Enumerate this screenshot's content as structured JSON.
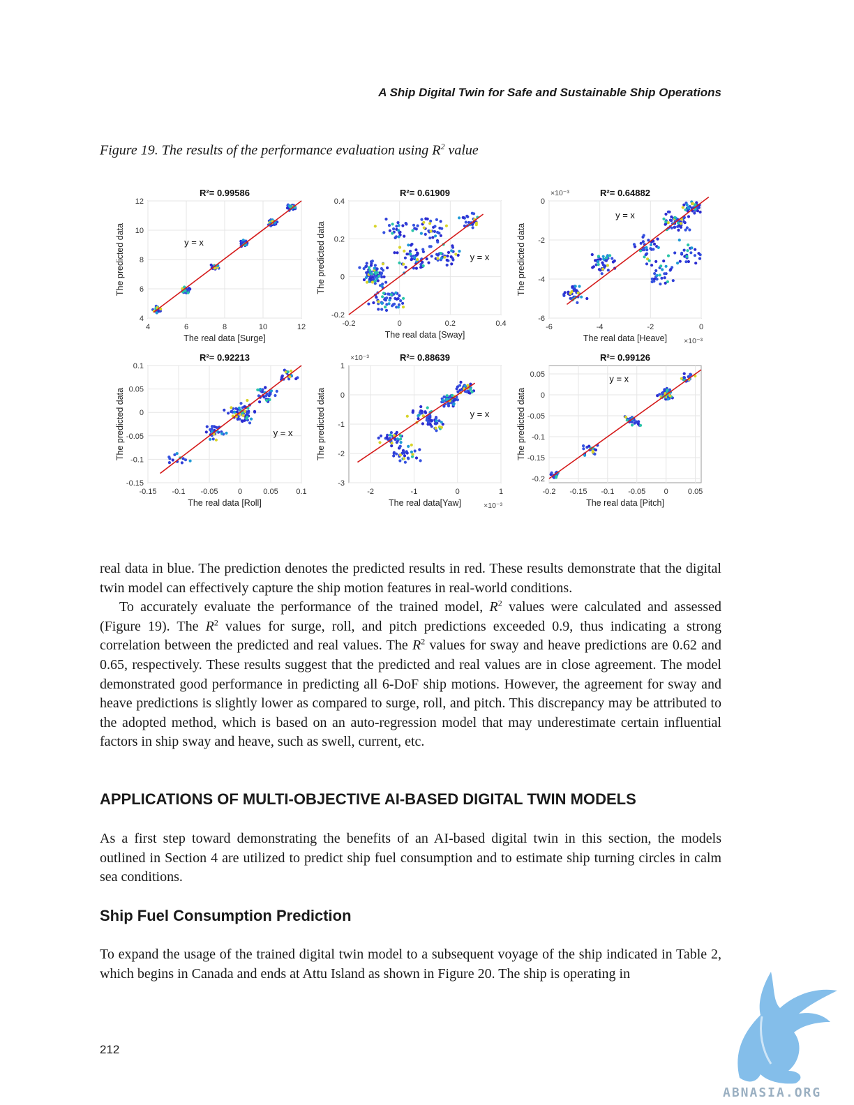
{
  "header": {
    "running_title": "A Ship Digital Twin for Safe and Sustainable Ship Operations"
  },
  "figure": {
    "caption_prefix": "Figure 19. The results of the performance evaluation using R",
    "caption_sup": "2",
    "caption_suffix": " value"
  },
  "chart_data": [
    {
      "type": "scatter",
      "title": "R²= 0.99586",
      "xlabel": "The real data [Surge]",
      "ylabel": "The predicted data",
      "xlim": [
        4,
        12
      ],
      "ylim": [
        4,
        12
      ],
      "xticks": [
        "4",
        "6",
        "8",
        "10",
        "12"
      ],
      "yticks": [
        "4",
        "6",
        "8",
        "10",
        "12"
      ],
      "annotation": "y = x",
      "x_exponent": "",
      "y_exponent": "",
      "fit_line": [
        [
          4.3,
          4.4
        ],
        [
          12,
          12
        ]
      ],
      "clusters": [
        [
          4.5,
          4.6,
          0.15,
          25
        ],
        [
          6,
          5.9,
          0.15,
          25
        ],
        [
          7.5,
          7.5,
          0.12,
          25
        ],
        [
          9,
          9.1,
          0.15,
          30
        ],
        [
          10.5,
          10.5,
          0.15,
          35
        ],
        [
          11.5,
          11.6,
          0.15,
          35
        ]
      ]
    },
    {
      "type": "scatter",
      "title": "R²= 0.61909",
      "xlabel": "The real data [Sway]",
      "ylabel": "The predicted data",
      "xlim": [
        -0.2,
        0.4
      ],
      "ylim": [
        -0.2,
        0.4
      ],
      "xticks": [
        "-0.2",
        "0",
        "0.2",
        "0.4"
      ],
      "yticks": [
        "-0.2",
        "0",
        "0.2",
        "0.4"
      ],
      "annotation": "y = x",
      "x_exponent": "",
      "y_exponent": "",
      "fit_line": [
        [
          -0.2,
          -0.2
        ],
        [
          0.33,
          0.33
        ]
      ],
      "clusters": [
        [
          -0.1,
          0.02,
          0.04,
          80
        ],
        [
          -0.05,
          -0.12,
          0.05,
          50
        ],
        [
          0.05,
          0.1,
          0.05,
          45
        ],
        [
          0.12,
          0.25,
          0.05,
          35
        ],
        [
          0.18,
          0.12,
          0.04,
          35
        ],
        [
          0.28,
          0.3,
          0.03,
          25
        ],
        [
          -0.02,
          0.25,
          0.04,
          25
        ]
      ]
    },
    {
      "type": "scatter",
      "title": "R²= 0.64882",
      "xlabel": "The real data [Heave]",
      "ylabel": "The predicted data",
      "xlim": [
        -6,
        0
      ],
      "ylim": [
        -6,
        0
      ],
      "xticks": [
        "-6",
        "-4",
        "-2",
        "0"
      ],
      "yticks": [
        "-6",
        "-4",
        "-2",
        "0"
      ],
      "annotation": "y = x",
      "x_exponent": "×10⁻³",
      "y_exponent": "×10⁻³",
      "fit_line": [
        [
          -5.3,
          -5.3
        ],
        [
          0.3,
          0.2
        ]
      ],
      "clusters": [
        [
          -5,
          -4.8,
          0.3,
          35
        ],
        [
          -3.8,
          -3.2,
          0.35,
          40
        ],
        [
          -2,
          -2.5,
          0.5,
          35
        ],
        [
          -1,
          -1,
          0.4,
          55
        ],
        [
          -0.3,
          -0.3,
          0.25,
          45
        ],
        [
          -1.5,
          -3.8,
          0.4,
          25
        ],
        [
          -0.5,
          -2.7,
          0.4,
          25
        ]
      ]
    },
    {
      "type": "scatter",
      "title": "R²= 0.92213",
      "xlabel": "The real data [Roll]",
      "ylabel": "The predicted data",
      "xlim": [
        -0.15,
        0.1
      ],
      "ylim": [
        -0.15,
        0.1
      ],
      "xticks": [
        "-0.15",
        "-0.1",
        "-0.05",
        "0",
        "0.05",
        "0.1"
      ],
      "yticks": [
        "-0.15",
        "-0.1",
        "-0.05",
        "0",
        "0.05",
        "0.1"
      ],
      "annotation": "y = x",
      "x_exponent": "",
      "y_exponent": "",
      "fit_line": [
        [
          -0.13,
          -0.13
        ],
        [
          0.1,
          0.1
        ]
      ],
      "clusters": [
        [
          0,
          0,
          0.015,
          70
        ],
        [
          -0.04,
          -0.04,
          0.012,
          30
        ],
        [
          0.04,
          0.04,
          0.012,
          30
        ],
        [
          0.08,
          0.08,
          0.01,
          20
        ],
        [
          -0.1,
          -0.1,
          0.012,
          12
        ]
      ]
    },
    {
      "type": "scatter",
      "title": "R²= 0.88639",
      "xlabel": "The real data[Yaw]",
      "ylabel": "The predicted data",
      "xlim": [
        -2.5,
        1
      ],
      "ylim": [
        -3,
        1
      ],
      "xticks": [
        "-2",
        "-1",
        "0",
        "1"
      ],
      "yticks": [
        "-3",
        "-2",
        "-1",
        "0",
        "1"
      ],
      "annotation": "y = x",
      "x_exponent": "×10⁻³",
      "y_exponent": "×10⁻³",
      "fit_line": [
        [
          -2.3,
          -2.3
        ],
        [
          0.4,
          0.4
        ]
      ],
      "clusters": [
        [
          -0.2,
          -0.2,
          0.15,
          45
        ],
        [
          0.2,
          0.2,
          0.15,
          35
        ],
        [
          -0.8,
          -0.7,
          0.2,
          35
        ],
        [
          -1.5,
          -1.5,
          0.2,
          35
        ],
        [
          -1.2,
          -2,
          0.25,
          35
        ],
        [
          -0.5,
          -1,
          0.15,
          25
        ]
      ]
    },
    {
      "type": "scatter",
      "title": "R²= 0.99126",
      "xlabel": "The real data [Pitch]",
      "ylabel": "The predicted data",
      "xlim": [
        -0.2,
        0.06
      ],
      "ylim": [
        -0.21,
        0.07
      ],
      "xticks": [
        "-0.2",
        "-0.15",
        "-0.1",
        "-0.05",
        "0",
        "0.05"
      ],
      "yticks": [
        "-0.2",
        "-0.15",
        "-0.1",
        "-0.05",
        "0",
        "0.05"
      ],
      "annotation": "y = x",
      "x_exponent": "",
      "y_exponent": "",
      "fit_line": [
        [
          -0.2,
          -0.2
        ],
        [
          0.06,
          0.06
        ]
      ],
      "clusters": [
        [
          0,
          0,
          0.01,
          60
        ],
        [
          -0.06,
          -0.06,
          0.01,
          25
        ],
        [
          -0.13,
          -0.13,
          0.012,
          20
        ],
        [
          -0.19,
          -0.19,
          0.006,
          15
        ],
        [
          0.04,
          0.04,
          0.008,
          20
        ]
      ]
    }
  ],
  "body": {
    "para1": "real data in blue. The prediction denotes the predicted results in red. These results demonstrate that the digital twin model can effectively capture the ship motion features in real-world conditions.",
    "para2": [
      "To accurately evaluate the performance of the trained model, ",
      "R",
      "2",
      " values were calculated and assessed (Figure 19). The ",
      "R",
      "2",
      " values for surge, roll, and pitch predictions exceeded 0.9, thus indicating a strong correlation between the predicted and real values. The ",
      "R",
      "2",
      " values for sway and heave predictions are 0.62 and 0.65, respectively. These results suggest that the predicted and real values are in close agreement. The model demonstrated good performance in predicting all 6-DoF ship motions. However, the agreement for sway and heave predictions is slightly lower as compared to surge, roll, and pitch. This discrepancy may be attributed to the adopted method, which is based on an auto-regression model that may underestimate certain influential factors in ship sway and heave, such as swell, current, etc."
    ],
    "section_heading": "APPLICATIONS OF MULTI-OBJECTIVE AI-BASED DIGITAL TWIN MODELS",
    "para3": "As a first step toward demonstrating the benefits of an AI-based digital twin in this section, the models outlined in Section 4 are utilized to predict ship fuel consumption and to estimate ship turning circles in calm sea conditions.",
    "subheading": "Ship Fuel Consumption Prediction",
    "para4": "To expand the usage of the trained digital twin model to a subsequent voyage of the ship indicated in Table 2, which begins in Canada and ends at Attu Island as shown in Figure 20. The ship is operating in"
  },
  "footer": {
    "page_number": "212"
  },
  "watermark": {
    "text": "ABNASIA.ORG",
    "icon": "griffin-logo-icon",
    "color": "#6fb3e6"
  }
}
